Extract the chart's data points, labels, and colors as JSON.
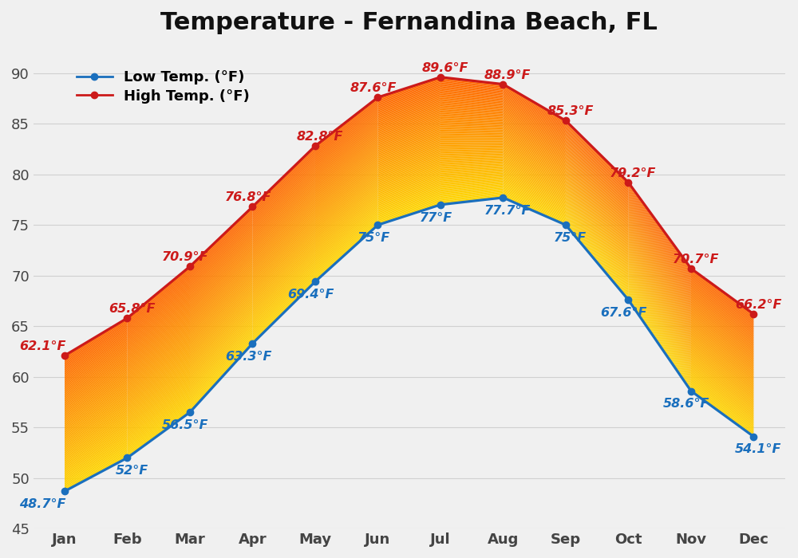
{
  "title": "Temperature - Fernandina Beach, FL",
  "months": [
    "Jan",
    "Feb",
    "Mar",
    "Apr",
    "May",
    "Jun",
    "Jul",
    "Aug",
    "Sep",
    "Oct",
    "Nov",
    "Dec"
  ],
  "low_temps": [
    48.7,
    52.0,
    56.5,
    63.3,
    69.4,
    75.0,
    77.0,
    77.7,
    75.0,
    67.6,
    58.6,
    54.1
  ],
  "high_temps": [
    62.1,
    65.8,
    70.9,
    76.8,
    82.8,
    87.6,
    89.6,
    88.9,
    85.3,
    79.2,
    70.7,
    66.2
  ],
  "low_labels": [
    "48.7°F",
    "52°F",
    "56.5°F",
    "63.3°F",
    "69.4°F",
    "75°F",
    "77°F",
    "77.7°F",
    "75°F",
    "67.6°F",
    "58.6°F",
    "54.1°F"
  ],
  "high_labels": [
    "62.1°F",
    "65.8°F",
    "70.9°F",
    "76.8°F",
    "82.8°F",
    "87.6°F",
    "89.6°F",
    "88.9°F",
    "85.3°F",
    "79.2°F",
    "70.7°F",
    "66.2°F"
  ],
  "low_color": "#1a6fbd",
  "high_color": "#cc1a1a",
  "color_bottom": "#ffd700",
  "color_top": "#ff6600",
  "ylim": [
    45,
    93
  ],
  "yticks": [
    45,
    50,
    55,
    60,
    65,
    70,
    75,
    80,
    85,
    90
  ],
  "background_color": "#f0f0f0",
  "grid_color": "#d0d0d0",
  "title_fontsize": 22,
  "label_fontsize": 11.5,
  "tick_fontsize": 13,
  "legend_fontsize": 13
}
